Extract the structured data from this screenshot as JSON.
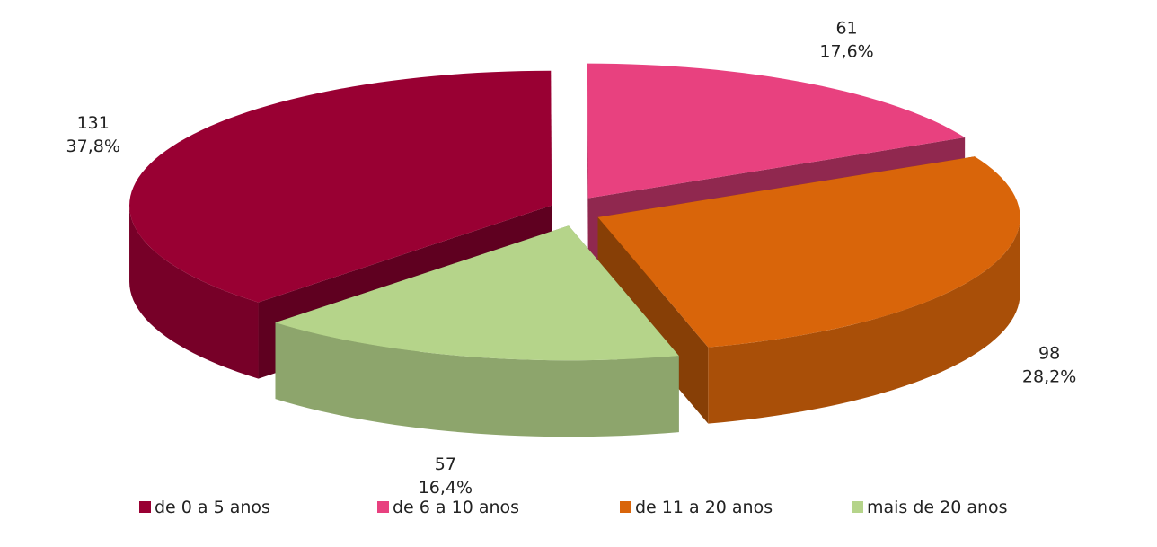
{
  "chart_data": {
    "type": "pie3d",
    "categories": [
      "de 0 a 5 anos",
      "de 6 a 10 anos",
      "de 11 a 20 anos",
      "mais de 20 anos"
    ],
    "values": [
      131,
      61,
      98,
      57
    ],
    "percent_labels": [
      "37,8%",
      "17,6%",
      "28,2%",
      "16,4%"
    ],
    "colors": [
      "#990033",
      "#e8417f",
      "#d9650a",
      "#b5d48a"
    ],
    "legend": "bottom"
  }
}
